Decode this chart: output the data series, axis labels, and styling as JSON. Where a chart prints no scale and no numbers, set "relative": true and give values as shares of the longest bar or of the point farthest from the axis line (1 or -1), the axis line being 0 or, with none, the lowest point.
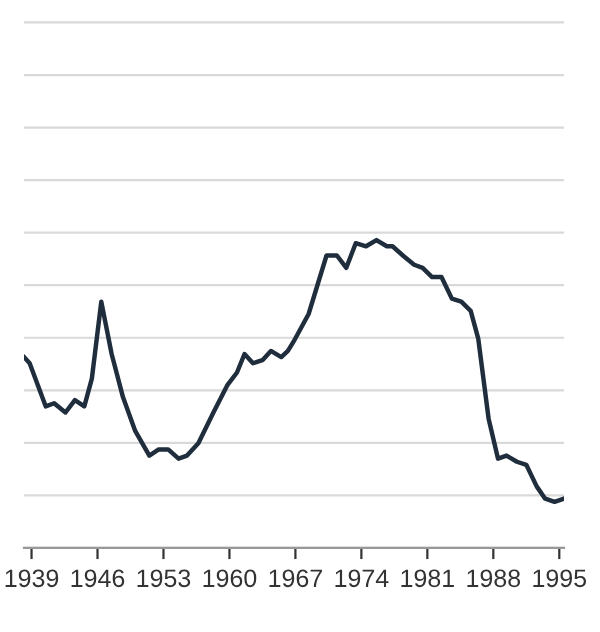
{
  "chart_data": {
    "type": "line",
    "relative": true,
    "grid": "y",
    "line_style": "solid",
    "marker": "none",
    "x": [
      1938.2,
      1938.8,
      1940.5,
      1941.4,
      1942.6,
      1943.6,
      1944.6,
      1945.4,
      1946.4,
      1947.5,
      1948.7,
      1950.0,
      1951.5,
      1952.5,
      1953.5,
      1954.6,
      1955.5,
      1956.7,
      1958.3,
      1959.8,
      1960.8,
      1961.6,
      1962.5,
      1963.5,
      1964.4,
      1965.5,
      1966.2,
      1966.8,
      1968.4,
      1970.3,
      1971.4,
      1972.4,
      1973.4,
      1974.5,
      1975.6,
      1976.7,
      1977.3,
      1978.4,
      1979.6,
      1980.5,
      1981.5,
      1982.5,
      1983.6,
      1984.6,
      1985.6,
      1986.4,
      1987.5,
      1988.5,
      1989.4,
      1990.5,
      1991.5,
      1992.6,
      1993.5,
      1994.5,
      1995.5
    ],
    "series": [
      {
        "color": "#1f2d3d",
        "values": [
          0.62,
          0.6,
          0.46,
          0.47,
          0.44,
          0.48,
          0.46,
          0.55,
          0.8,
          0.63,
          0.49,
          0.38,
          0.3,
          0.32,
          0.32,
          0.29,
          0.3,
          0.34,
          0.44,
          0.53,
          0.57,
          0.63,
          0.6,
          0.61,
          0.64,
          0.62,
          0.64,
          0.67,
          0.76,
          0.95,
          0.95,
          0.91,
          0.99,
          0.98,
          1.0,
          0.98,
          0.98,
          0.95,
          0.92,
          0.91,
          0.88,
          0.88,
          0.81,
          0.8,
          0.77,
          0.68,
          0.42,
          0.29,
          0.3,
          0.28,
          0.27,
          0.2,
          0.16,
          0.15,
          0.16
        ]
      }
    ],
    "xlim": [
      1938.2,
      1995.5
    ],
    "xticks": [
      1939,
      1946,
      1953,
      1960,
      1967,
      1974,
      1981,
      1988,
      1995
    ]
  }
}
